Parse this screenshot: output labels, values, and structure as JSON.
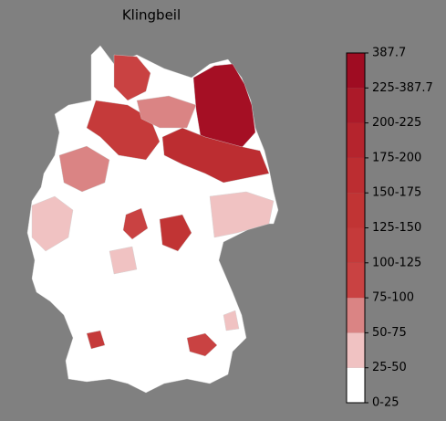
{
  "title": "Klingbeil",
  "colorbar": {
    "labels": [
      "0-25",
      "25-50",
      "50-75",
      "75-100",
      "100-125",
      "125-150",
      "150-175",
      "175-200",
      "200-225",
      "225-387.7",
      "387.7"
    ],
    "colors": [
      "#ffffff",
      "#f0c2c2",
      "#da8484",
      "#c94242",
      "#c53a3a",
      "#c13434",
      "#bc2d31",
      "#b5242d",
      "#ac1a29",
      "#9f0c22"
    ]
  }
}
